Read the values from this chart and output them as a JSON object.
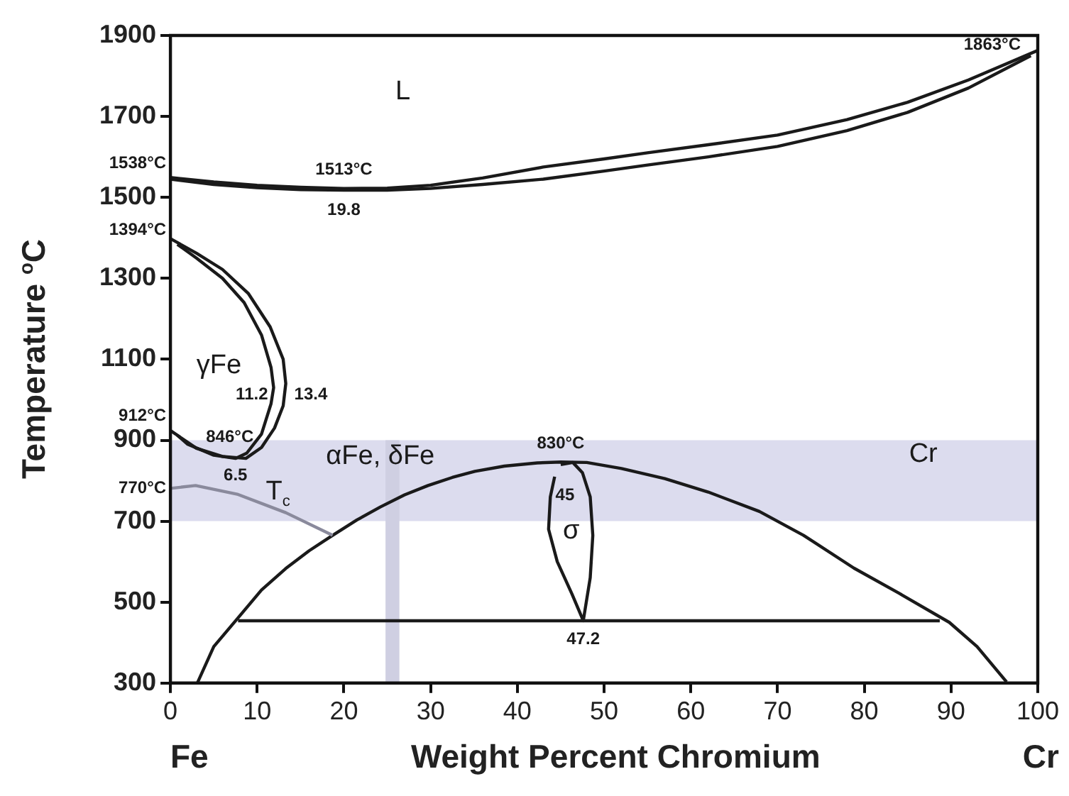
{
  "chart_data": {
    "type": "line",
    "xlabel": "Weight Percent Chromium",
    "ylabel": "Temperature $^{o}$C",
    "xlim": [
      0,
      100
    ],
    "xticks": [
      0,
      10,
      20,
      30,
      40,
      50,
      60,
      70,
      80,
      90,
      100
    ],
    "ylim": [
      300,
      1900
    ],
    "yticks": [
      300,
      500,
      700,
      900,
      1100,
      1300,
      1500,
      1700,
      1900
    ],
    "grid": false,
    "legend": false,
    "marker": "none",
    "line_style": "solid",
    "series": [
      {
        "color": "#1a1a1a",
        "x": [
          0,
          5,
          10,
          15,
          20,
          25,
          30,
          36,
          43,
          50,
          55,
          62,
          70,
          78,
          85,
          92,
          100
        ],
        "values": [
          1549,
          1538,
          1530,
          1525,
          1522,
          1523,
          1530,
          1548,
          1575,
          1595,
          1610,
          1630,
          1654,
          1692,
          1735,
          1790,
          1863
        ]
      },
      {
        "color": "#1a1a1a",
        "x": [
          0,
          5,
          10,
          15,
          20,
          25,
          30,
          36,
          43,
          50,
          55,
          62,
          70,
          78,
          85,
          92,
          99.2
        ],
        "values": [
          1545,
          1532,
          1524,
          1519,
          1518,
          1518,
          1522,
          1532,
          1545,
          1565,
          1580,
          1600,
          1626,
          1665,
          1710,
          1770,
          1850
        ]
      },
      {
        "color": "#1a1a1a",
        "x": [
          0,
          3,
          6,
          9,
          11.5,
          13,
          13.3,
          13,
          12,
          10.5,
          8.7,
          6,
          3,
          0
        ],
        "values": [
          1398,
          1362,
          1322,
          1262,
          1180,
          1100,
          1040,
          985,
          930,
          882,
          855,
          860,
          880,
          924
        ]
      },
      {
        "color": "#1a1a1a",
        "x": [
          0.8,
          3,
          6,
          8.5,
          10.5,
          11.6,
          11.9,
          11.6,
          10.5,
          8.8,
          7.5,
          5,
          2,
          0.8
        ],
        "values": [
          1384,
          1350,
          1300,
          1240,
          1160,
          1080,
          1030,
          990,
          915,
          868,
          855,
          863,
          890,
          912
        ]
      },
      {
        "color": "#8a8a9c",
        "x": [
          0,
          2.9,
          7.8,
          13.3,
          18.7
        ],
        "values": [
          781,
          788,
          766,
          721,
          665
        ]
      },
      {
        "color": "#1a1a1a",
        "x": [
          3.1,
          5,
          7.8,
          10.5,
          13.3,
          16,
          18.7,
          21.5,
          24.2,
          27,
          29.7,
          32.5,
          35.1,
          38.5,
          42.3,
          45,
          48,
          52,
          57,
          62,
          67.9,
          73,
          78.8,
          84,
          89.8,
          93,
          96.4
        ],
        "values": [
          300,
          390,
          461,
          530,
          583,
          627,
          665,
          703,
          735,
          765,
          788,
          808,
          823,
          836,
          844,
          846,
          845,
          830,
          805,
          772,
          724,
          665,
          584,
          522,
          450,
          390,
          303
        ]
      },
      {
        "color": "#1a1a1a",
        "x": [
          7.8,
          88.7
        ],
        "values": [
          454,
          454
        ]
      },
      {
        "color": "#1a1a1a",
        "x": [
          45,
          46.4,
          47.5,
          48.4,
          48.7,
          48.4,
          47.6,
          46.3,
          44.6,
          43.6,
          43.8,
          44.3
        ],
        "values": [
          840,
          845,
          820,
          760,
          665,
          560,
          454,
          520,
          600,
          680,
          760,
          810
        ]
      }
    ],
    "bands": [
      {
        "axis": "y",
        "from": 700,
        "to": 900,
        "color": "#dcdcee"
      },
      {
        "axis": "x",
        "from": 24.8,
        "to": 26.4,
        "color": "#cfcfe2"
      }
    ],
    "annotations": [
      "Fe",
      "Cr",
      "L",
      "γFe",
      "T$_{c}$",
      "αFe, δFe",
      "σ",
      "Cr",
      {
        "text": "1538°C",
        "x": 0,
        "y": 1549
      },
      {
        "text": "1513°C",
        "x": 20,
        "y": 1522
      },
      {
        "text": "19.8",
        "x": 20,
        "y": 1518
      },
      {
        "text": "1863°C",
        "x": 100,
        "y": 1863
      },
      {
        "text": "1394°C",
        "x": 0,
        "y": 1398
      },
      {
        "text": "11.2",
        "x": 11.9,
        "y": 1030
      },
      {
        "text": "13.4",
        "x": 13.3,
        "y": 1040
      },
      {
        "text": "912°C",
        "x": 0,
        "y": 924
      },
      {
        "text": "846°C",
        "x": 7.5,
        "y": 855
      },
      {
        "text": "6.5",
        "x": 7.5,
        "y": 855
      },
      {
        "text": "770°C",
        "x": 0,
        "y": 781
      },
      {
        "text": "830°C",
        "x": 45,
        "y": 846
      },
      {
        "text": "45",
        "x": 45,
        "y": 840
      },
      {
        "text": "47.2",
        "x": 47.6,
        "y": 454
      }
    ]
  }
}
